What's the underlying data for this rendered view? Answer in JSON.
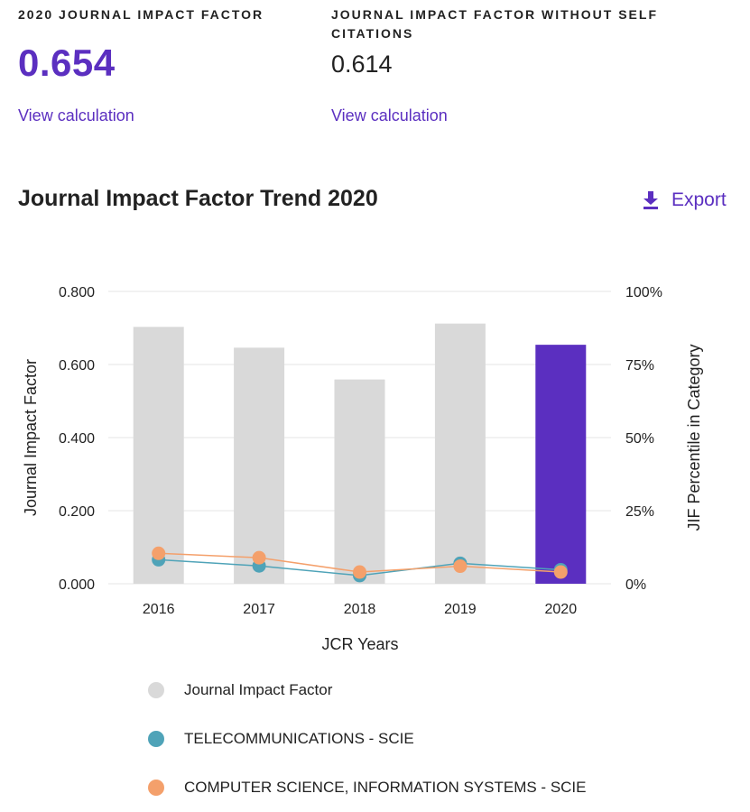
{
  "metrics": {
    "jif": {
      "label": "2020 JOURNAL IMPACT FACTOR",
      "value": "0.654",
      "link": "View calculation"
    },
    "jif_no_self": {
      "label": "JOURNAL IMPACT FACTOR WITHOUT SELF CITATIONS",
      "value": "0.614",
      "link": "View calculation"
    }
  },
  "trend": {
    "title": "Journal Impact Factor Trend 2020",
    "export_label": "Export",
    "export_icon": "download-icon"
  },
  "colors": {
    "accent": "#5b2fc0",
    "bar_default": "#d9d9d9",
    "bar_highlight": "#5b2fc0",
    "telecom": "#4fa3b8",
    "cs_is": "#f4a06b",
    "grid": "#e6e6e6"
  },
  "chart_data": {
    "type": "bar",
    "title": "",
    "xlabel": "JCR Years",
    "ylabel": "Journal Impact Factor",
    "ylabel_right": "JIF Percentile in Category",
    "categories": [
      "2016",
      "2017",
      "2018",
      "2019",
      "2020"
    ],
    "ylim": [
      0,
      0.8
    ],
    "y_ticks": [
      "0.000",
      "0.200",
      "0.400",
      "0.600",
      "0.800"
    ],
    "y2lim": [
      0,
      100
    ],
    "y2_ticks": [
      "0%",
      "25%",
      "50%",
      "75%",
      "100%"
    ],
    "highlight_index": 4,
    "grid": true,
    "legend_position": "bottom",
    "series": [
      {
        "name": "Journal Impact Factor",
        "kind": "bar",
        "axis": "left",
        "values": [
          0.703,
          0.646,
          0.559,
          0.712,
          0.654
        ]
      },
      {
        "name": "TELECOMMUNICATIONS - SCIE",
        "kind": "line",
        "axis": "right",
        "values": [
          8.2,
          6.1,
          2.8,
          7.0,
          4.8
        ]
      },
      {
        "name": "COMPUTER SCIENCE, INFORMATION SYSTEMS - SCIE",
        "kind": "line",
        "axis": "right",
        "values": [
          10.4,
          8.9,
          4.0,
          6.0,
          4.0
        ]
      }
    ]
  }
}
